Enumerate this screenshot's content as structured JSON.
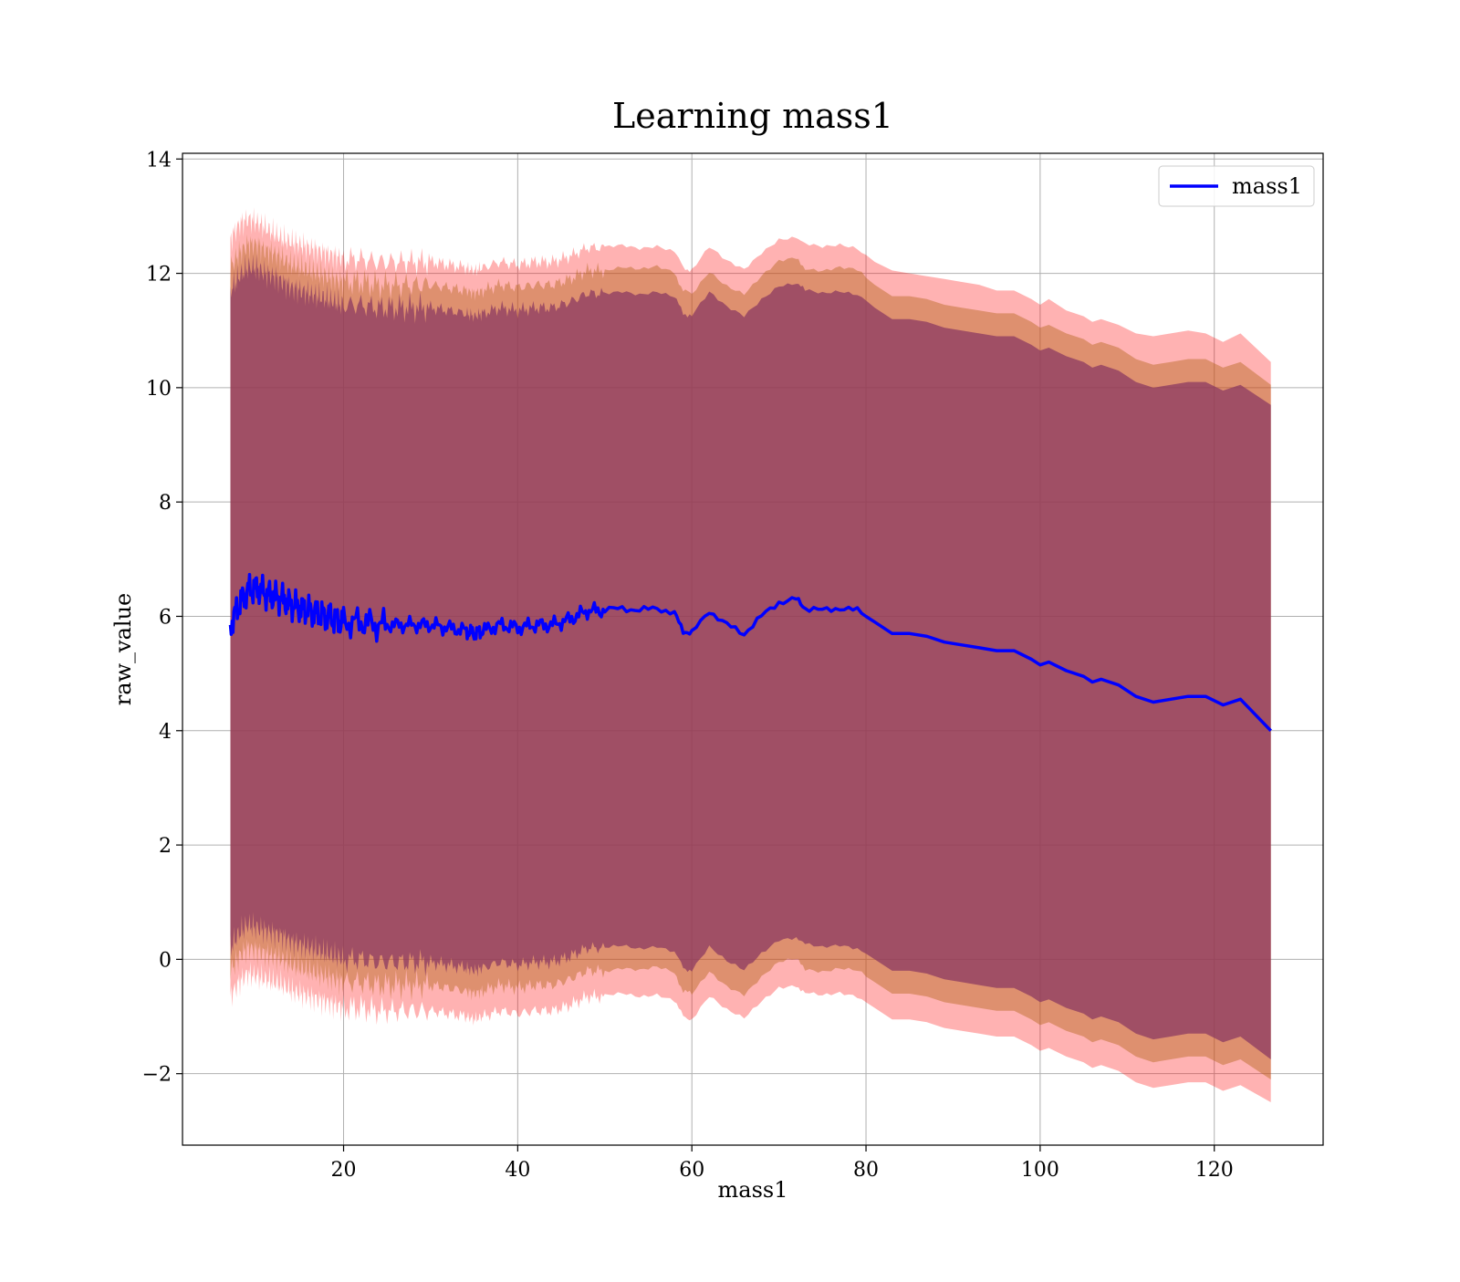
{
  "chart_data": {
    "type": "line",
    "title": "Learning mass1",
    "xlabel": "mass1",
    "ylabel": "raw_value",
    "xlim": [
      1.5,
      132.5
    ],
    "ylim": [
      -3.25,
      14.1
    ],
    "xticks": [
      20,
      40,
      60,
      80,
      100,
      120
    ],
    "yticks": [
      -2,
      0,
      2,
      4,
      6,
      8,
      10,
      12,
      14
    ],
    "grid": true,
    "legend": {
      "position": "top-right",
      "entries": [
        "mass1"
      ]
    },
    "colors": {
      "line": "#0000ff",
      "band_outer": "#ff0000",
      "band_middle": "#b5651d",
      "band_inner": "#8b3a62",
      "grid": "#b0b0b0"
    },
    "series": [
      {
        "name": "mass1",
        "x": [
          7,
          8,
          9,
          10,
          11,
          12,
          13,
          14,
          15,
          16,
          17,
          18,
          19,
          20,
          22,
          24,
          26,
          28,
          30,
          32,
          34,
          35,
          36,
          38,
          40,
          42,
          44,
          46,
          48,
          50,
          52,
          54,
          56,
          58,
          59,
          60,
          62,
          64,
          66,
          68,
          70,
          72,
          73,
          75,
          77,
          79,
          81,
          83,
          85,
          87,
          89,
          91,
          93,
          95,
          97,
          99,
          100,
          101,
          103,
          105,
          106,
          107,
          109,
          111,
          113,
          115,
          117,
          119,
          121,
          123,
          126.5
        ],
        "y": [
          5.85,
          6.2,
          6.45,
          6.5,
          6.4,
          6.35,
          6.3,
          6.2,
          6.15,
          6.1,
          6.05,
          6.0,
          5.95,
          5.9,
          5.9,
          5.85,
          5.85,
          5.85,
          5.85,
          5.8,
          5.75,
          5.7,
          5.75,
          5.85,
          5.8,
          5.85,
          5.85,
          5.95,
          6.1,
          6.1,
          6.15,
          6.1,
          6.15,
          6.05,
          5.75,
          5.7,
          6.1,
          5.85,
          5.7,
          6.0,
          6.25,
          6.3,
          6.15,
          6.1,
          6.15,
          6.1,
          5.9,
          5.7,
          5.7,
          5.65,
          5.55,
          5.5,
          5.45,
          5.4,
          5.4,
          5.25,
          5.15,
          5.2,
          5.05,
          4.95,
          4.85,
          4.9,
          4.8,
          4.6,
          4.5,
          4.55,
          4.6,
          4.6,
          4.45,
          4.55,
          4.0
        ]
      }
    ],
    "bands": {
      "outer_upper": [
        12.6,
        12.85,
        12.95,
        12.9,
        12.8,
        12.7,
        12.6,
        12.55,
        12.5,
        12.45,
        12.4,
        12.35,
        12.3,
        12.25,
        12.25,
        12.2,
        12.2,
        12.2,
        12.2,
        12.15,
        12.1,
        12.05,
        12.1,
        12.2,
        12.15,
        12.2,
        12.2,
        12.3,
        12.45,
        12.45,
        12.5,
        12.45,
        12.5,
        12.4,
        12.1,
        12.05,
        12.45,
        12.2,
        12.05,
        12.35,
        12.6,
        12.65,
        12.5,
        12.45,
        12.5,
        12.45,
        12.2,
        12.05,
        12.0,
        11.95,
        11.9,
        11.85,
        11.8,
        11.7,
        11.7,
        11.55,
        11.45,
        11.55,
        11.35,
        11.25,
        11.15,
        11.2,
        11.1,
        10.95,
        10.9,
        10.95,
        11.0,
        10.95,
        10.8,
        10.95,
        10.45
      ],
      "middle_upper": [
        12.1,
        12.35,
        12.5,
        12.5,
        12.4,
        12.35,
        12.25,
        12.15,
        12.1,
        12.05,
        12.0,
        11.95,
        11.9,
        11.85,
        11.85,
        11.8,
        11.8,
        11.8,
        11.8,
        11.75,
        11.7,
        11.65,
        11.7,
        11.8,
        11.75,
        11.8,
        11.8,
        11.9,
        12.05,
        12.05,
        12.1,
        12.05,
        12.1,
        12.0,
        11.7,
        11.65,
        12.05,
        11.8,
        11.65,
        11.95,
        12.2,
        12.25,
        12.1,
        12.05,
        12.1,
        12.05,
        11.8,
        11.6,
        11.6,
        11.55,
        11.45,
        11.4,
        11.35,
        11.3,
        11.3,
        11.15,
        11.05,
        11.1,
        10.95,
        10.85,
        10.75,
        10.8,
        10.7,
        10.5,
        10.4,
        10.45,
        10.5,
        10.5,
        10.35,
        10.45,
        10.05
      ],
      "inner_upper": [
        11.7,
        11.95,
        12.1,
        12.1,
        12.0,
        11.95,
        11.85,
        11.75,
        11.7,
        11.65,
        11.6,
        11.55,
        11.5,
        11.45,
        11.45,
        11.4,
        11.4,
        11.4,
        11.4,
        11.35,
        11.3,
        11.25,
        11.3,
        11.4,
        11.35,
        11.4,
        11.4,
        11.5,
        11.65,
        11.65,
        11.7,
        11.65,
        11.7,
        11.6,
        11.3,
        11.25,
        11.65,
        11.4,
        11.25,
        11.55,
        11.8,
        11.85,
        11.7,
        11.65,
        11.7,
        11.65,
        11.4,
        11.2,
        11.2,
        11.15,
        11.05,
        11.0,
        10.95,
        10.9,
        10.9,
        10.75,
        10.65,
        10.7,
        10.55,
        10.45,
        10.35,
        10.4,
        10.3,
        10.1,
        10.0,
        10.05,
        10.1,
        10.1,
        9.95,
        10.05,
        9.7
      ],
      "inner_lower": [
        0.2,
        0.45,
        0.6,
        0.55,
        0.5,
        0.45,
        0.4,
        0.3,
        0.25,
        0.2,
        0.15,
        0.1,
        0.05,
        0.0,
        0.0,
        -0.05,
        -0.05,
        -0.05,
        -0.05,
        -0.1,
        -0.15,
        -0.2,
        -0.15,
        -0.05,
        -0.1,
        -0.05,
        -0.05,
        0.05,
        0.2,
        0.2,
        0.25,
        0.2,
        0.25,
        0.15,
        -0.15,
        -0.2,
        0.2,
        -0.05,
        -0.2,
        0.1,
        0.35,
        0.4,
        0.25,
        0.2,
        0.25,
        0.2,
        0.0,
        -0.2,
        -0.2,
        -0.25,
        -0.35,
        -0.4,
        -0.45,
        -0.5,
        -0.5,
        -0.65,
        -0.75,
        -0.7,
        -0.85,
        -0.95,
        -1.05,
        -1.0,
        -1.1,
        -1.3,
        -1.4,
        -1.35,
        -1.3,
        -1.3,
        -1.45,
        -1.35,
        -1.75
      ],
      "middle_lower": [
        -0.2,
        0.05,
        0.2,
        0.15,
        0.1,
        0.05,
        0.0,
        -0.1,
        -0.15,
        -0.2,
        -0.25,
        -0.3,
        -0.35,
        -0.4,
        -0.4,
        -0.45,
        -0.45,
        -0.45,
        -0.45,
        -0.5,
        -0.55,
        -0.6,
        -0.55,
        -0.45,
        -0.5,
        -0.45,
        -0.45,
        -0.35,
        -0.2,
        -0.2,
        -0.15,
        -0.2,
        -0.15,
        -0.25,
        -0.55,
        -0.6,
        -0.2,
        -0.45,
        -0.6,
        -0.3,
        -0.05,
        0.0,
        -0.15,
        -0.2,
        -0.15,
        -0.2,
        -0.4,
        -0.6,
        -0.6,
        -0.65,
        -0.75,
        -0.8,
        -0.85,
        -0.9,
        -0.9,
        -1.05,
        -1.15,
        -1.1,
        -1.25,
        -1.35,
        -1.45,
        -1.4,
        -1.5,
        -1.7,
        -1.8,
        -1.75,
        -1.7,
        -1.7,
        -1.85,
        -1.75,
        -2.1
      ],
      "outer_lower": [
        -0.65,
        -0.4,
        -0.25,
        -0.3,
        -0.35,
        -0.4,
        -0.45,
        -0.55,
        -0.6,
        -0.65,
        -0.7,
        -0.75,
        -0.8,
        -0.85,
        -0.85,
        -0.9,
        -0.9,
        -0.9,
        -0.9,
        -0.95,
        -1.0,
        -1.05,
        -1.0,
        -0.9,
        -0.95,
        -0.9,
        -0.9,
        -0.8,
        -0.65,
        -0.65,
        -0.6,
        -0.65,
        -0.6,
        -0.7,
        -1.0,
        -1.05,
        -0.65,
        -0.9,
        -1.05,
        -0.75,
        -0.5,
        -0.45,
        -0.6,
        -0.65,
        -0.6,
        -0.65,
        -0.85,
        -1.05,
        -1.05,
        -1.1,
        -1.2,
        -1.25,
        -1.3,
        -1.35,
        -1.35,
        -1.5,
        -1.6,
        -1.55,
        -1.7,
        -1.8,
        -1.9,
        -1.85,
        -1.95,
        -2.15,
        -2.25,
        -2.2,
        -2.15,
        -2.15,
        -2.3,
        -2.2,
        -2.5
      ]
    }
  }
}
